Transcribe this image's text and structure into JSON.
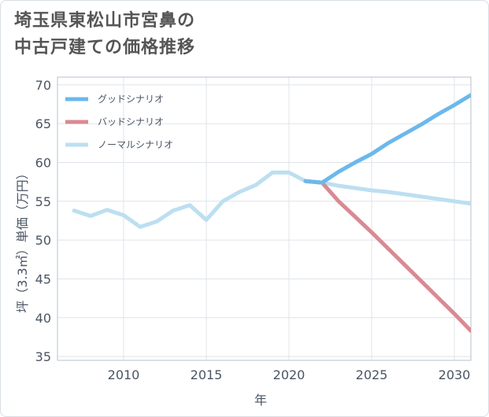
{
  "title_lines": [
    "埼玉県東松山市宮鼻の",
    "中古戸建ての価格推移"
  ],
  "chart_data": {
    "type": "line",
    "xlabel": "年",
    "ylabel": "坪（3.3㎡）単価（万円）",
    "xlim": [
      2006,
      2031
    ],
    "ylim": [
      34.5,
      71
    ],
    "xticks": [
      2010,
      2015,
      2020,
      2025,
      2030
    ],
    "yticks": [
      35,
      40,
      45,
      50,
      55,
      60,
      65,
      70
    ],
    "grid": true,
    "legend_position": "top-left",
    "series": [
      {
        "name": "グッドシナリオ",
        "color": "#6bb8ec",
        "x": [
          2021,
          2022,
          2023,
          2024,
          2025,
          2026,
          2027,
          2028,
          2029,
          2030,
          2031
        ],
        "y": [
          57.6,
          57.4,
          58.8,
          60.0,
          61.1,
          62.5,
          63.7,
          64.9,
          66.2,
          67.4,
          68.7
        ]
      },
      {
        "name": "バッドシナリオ",
        "color": "#d98a93",
        "x": [
          2021,
          2022,
          2023,
          2024,
          2025,
          2026,
          2027,
          2028,
          2029,
          2030,
          2031
        ],
        "y": [
          57.6,
          57.4,
          55.0,
          53.0,
          51.0,
          48.9,
          46.8,
          44.7,
          42.6,
          40.5,
          38.3
        ]
      },
      {
        "name": "ノーマルシナリオ",
        "color": "#bcdff1",
        "x": [
          2007,
          2008,
          2009,
          2010,
          2011,
          2012,
          2013,
          2014,
          2015,
          2016,
          2017,
          2018,
          2019,
          2020,
          2021,
          2022,
          2023,
          2024,
          2025,
          2026,
          2027,
          2028,
          2029,
          2030,
          2031
        ],
        "y": [
          53.8,
          53.1,
          53.9,
          53.2,
          51.7,
          52.4,
          53.8,
          54.5,
          52.6,
          55.0,
          56.2,
          57.1,
          58.7,
          58.7,
          57.6,
          57.4,
          57.0,
          56.7,
          56.4,
          56.2,
          55.9,
          55.6,
          55.3,
          55.0,
          54.7
        ]
      }
    ]
  }
}
